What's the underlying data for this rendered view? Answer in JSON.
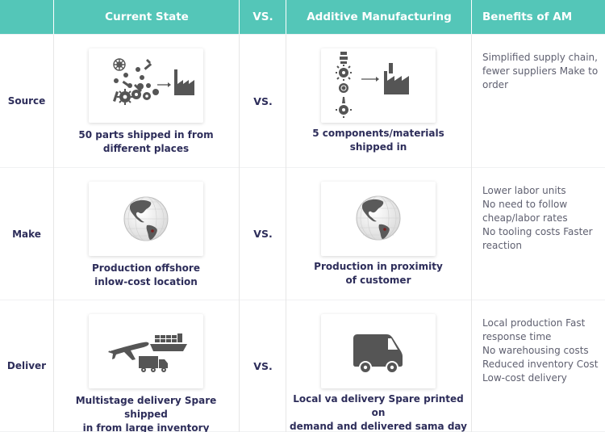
{
  "header": {
    "current": "Current State",
    "vs": "VS.",
    "am": "Additive Manufacturing",
    "benefits": "Benefits of AM"
  },
  "rows": [
    {
      "label": "Source",
      "current_caption": "50 parts shipped in from\ndifferent places",
      "vs": "VS.",
      "am_caption": "5 components/materials\nshipped in",
      "benefits": "Simplified supply chain,\nfewer suppliers Make to\norder"
    },
    {
      "label": "Make",
      "current_caption": "Production offshore\ninlow-cost location",
      "vs": "VS.",
      "am_caption": "Production in proximity\nof customer",
      "benefits": "Lower labor units\nNo need to follow\ncheap/labor rates\nNo tooling costs Faster\nreaction"
    },
    {
      "label": "Deliver",
      "current_caption": "Multistage delivery Spare shipped\nin from large inventory",
      "vs": "VS.",
      "am_caption": "Local va delivery Spare printed on\ndemand and delivered sama day",
      "benefits": "Local production Fast\nresponse time\nNo warehousing costs\nReduced inventory Cost\nLow-cost delivery"
    }
  ],
  "colors": {
    "header_bg": "#54c6b8",
    "text": "#2d2d5a",
    "icon": "#555555",
    "marker": "#7a1f1f"
  },
  "icons": {
    "source_current": "parts-to-factory-icon",
    "source_am": "few-parts-to-factory-icon",
    "make": "globe-icon",
    "deliver_current": "plane-ship-truck-icon",
    "deliver_am": "van-icon"
  }
}
